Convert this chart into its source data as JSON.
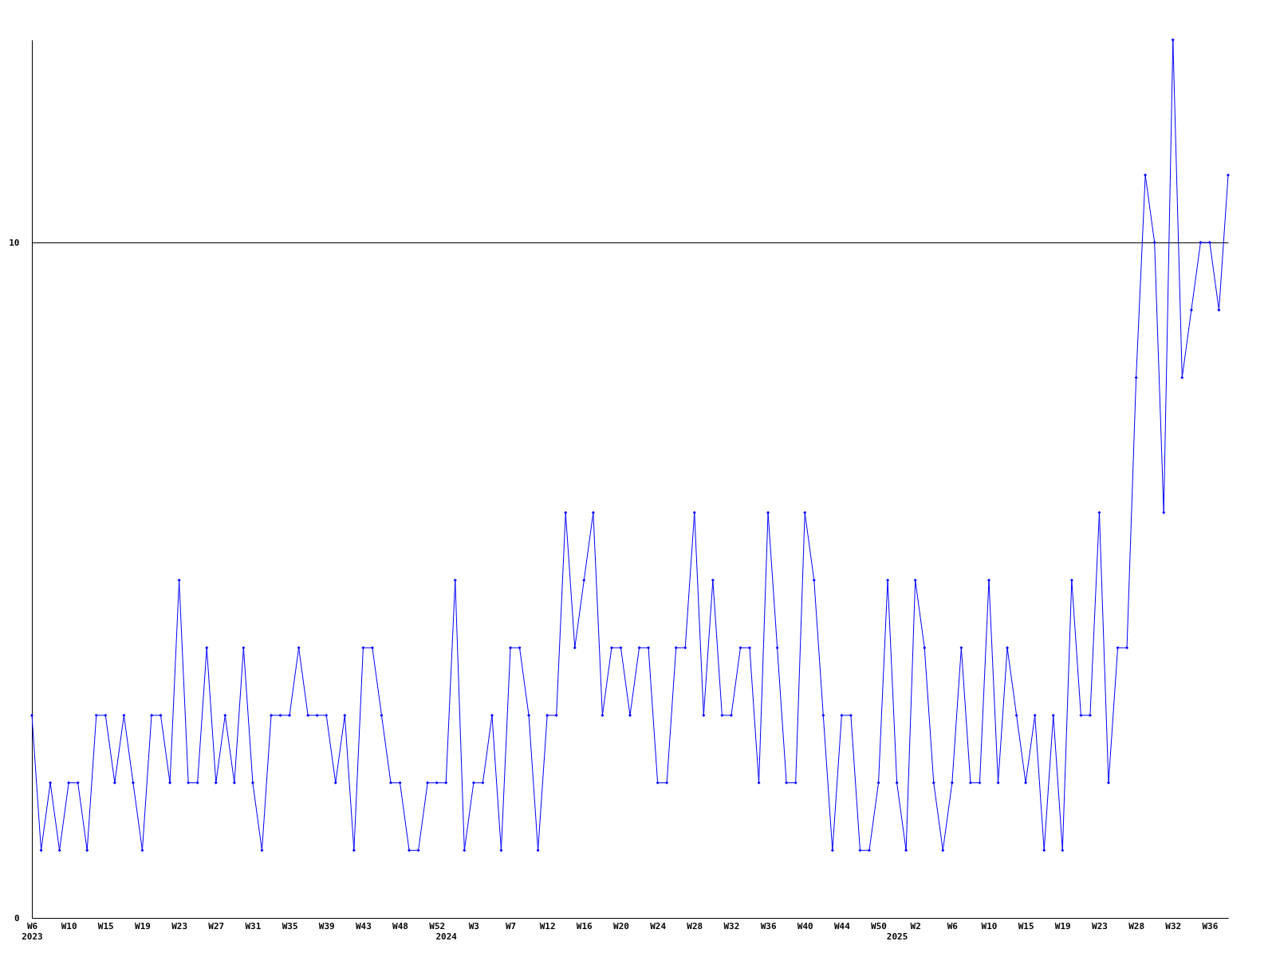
{
  "chart_data": {
    "type": "line",
    "categories": [
      "W6\n2023",
      null,
      null,
      null,
      "W10",
      null,
      null,
      null,
      "W15",
      null,
      null,
      null,
      "W19",
      null,
      null,
      null,
      "W23",
      null,
      null,
      null,
      "W27",
      null,
      null,
      null,
      "W31",
      null,
      null,
      null,
      "W35",
      null,
      null,
      null,
      "W39",
      null,
      null,
      null,
      "W43",
      null,
      null,
      null,
      "W48",
      null,
      null,
      null,
      "W52",
      "\n2024",
      null,
      null,
      "W3",
      null,
      null,
      null,
      "W7",
      null,
      null,
      null,
      "W12",
      null,
      null,
      null,
      "W16",
      null,
      null,
      null,
      "W20",
      null,
      null,
      null,
      "W24",
      null,
      null,
      null,
      "W28",
      null,
      null,
      null,
      "W32",
      null,
      null,
      null,
      "W36",
      null,
      null,
      null,
      "W40",
      null,
      null,
      null,
      "W44",
      null,
      null,
      null,
      "W50",
      null,
      "\n2025",
      null,
      "W2",
      null,
      null,
      null,
      "W6",
      null,
      null,
      null,
      "W10",
      null,
      null,
      null,
      "W15",
      null,
      null,
      null,
      "W19",
      null,
      null,
      null,
      "W23",
      null,
      null,
      null,
      "W28",
      null,
      null,
      null,
      "W32",
      null,
      null,
      null,
      "W36",
      null,
      null
    ],
    "series": [
      {
        "color": "#0000ff",
        "values": [
          3,
          1,
          2,
          1,
          2,
          2,
          1,
          3,
          3,
          2,
          3,
          2,
          1,
          3,
          3,
          2,
          5,
          2,
          2,
          4,
          2,
          3,
          2,
          4,
          2,
          1,
          3,
          3,
          3,
          4,
          3,
          3,
          3,
          2,
          3,
          1,
          4,
          4,
          3,
          2,
          2,
          1,
          1,
          2,
          2,
          2,
          5,
          1,
          2,
          2,
          3,
          1,
          4,
          4,
          3,
          1,
          3,
          3,
          6,
          4,
          5,
          6,
          3,
          4,
          4,
          3,
          4,
          4,
          2,
          2,
          4,
          4,
          6,
          3,
          5,
          3,
          3,
          4,
          4,
          2,
          6,
          4,
          2,
          2,
          6,
          5,
          3,
          1,
          3,
          3,
          1,
          1,
          2,
          5,
          2,
          1,
          5,
          4,
          2,
          1,
          2,
          4,
          2,
          2,
          5,
          2,
          4,
          3,
          2,
          3,
          1,
          3,
          1,
          5,
          3,
          3,
          6,
          2,
          4,
          4,
          8,
          11,
          10,
          6,
          13,
          8,
          9,
          10,
          10,
          9,
          11
        ]
      }
    ],
    "ylim": [
      0,
      13
    ],
    "yticks": [
      0,
      10
    ],
    "grid": "y",
    "marker": "diamond",
    "line_style": "solid",
    "legend": false
  }
}
